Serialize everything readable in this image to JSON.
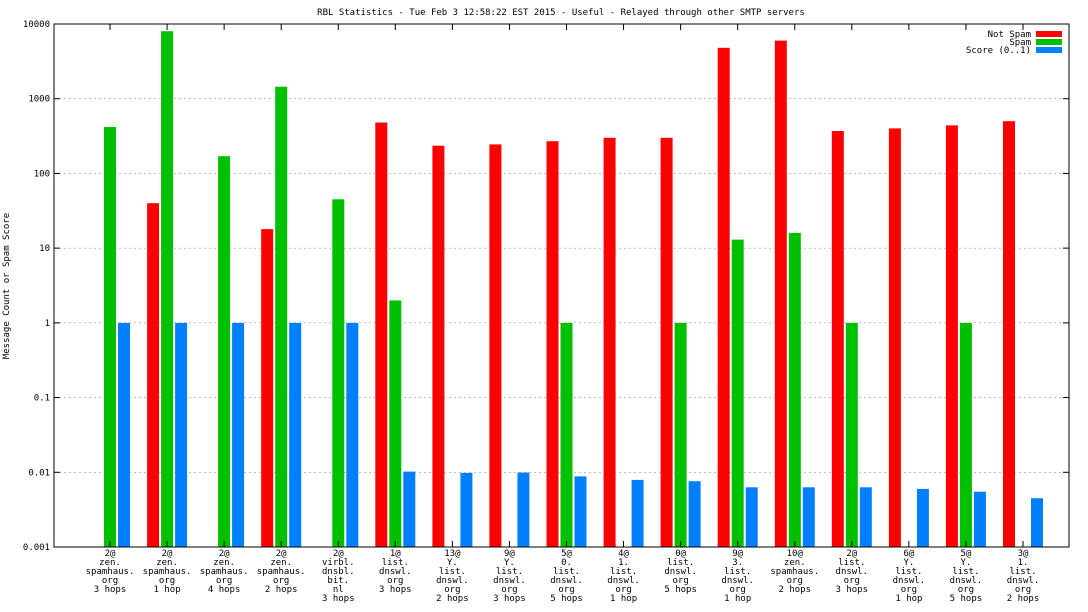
{
  "chart_data": {
    "type": "bar",
    "title": "RBL Statistics - Tue Feb  3 12:58:22 EST 2015 - Useful - Relayed through other SMTP servers",
    "xlabel": "",
    "ylabel": "Message Count or Spam Score",
    "yscale": "log",
    "ylim": [
      0.001,
      10000
    ],
    "yticks": [
      {
        "value": 0.001,
        "label": "0.001"
      },
      {
        "value": 0.01,
        "label": "0.01"
      },
      {
        "value": 0.1,
        "label": "0.1"
      },
      {
        "value": 1,
        "label": "1"
      },
      {
        "value": 10,
        "label": "10"
      },
      {
        "value": 100,
        "label": "100"
      },
      {
        "value": 1000,
        "label": "1000"
      },
      {
        "value": 10000,
        "label": "10000"
      }
    ],
    "grid": true,
    "legend_position": "top-right",
    "categories": [
      [
        "2@",
        "zen.",
        "spamhaus.",
        "org",
        "3 hops"
      ],
      [
        "2@",
        "zen.",
        "spamhaus.",
        "org",
        "1 hop"
      ],
      [
        "2@",
        "zen.",
        "spamhaus.",
        "org",
        "4 hops"
      ],
      [
        "2@",
        "zen.",
        "spamhaus.",
        "org",
        "2 hops"
      ],
      [
        "2@",
        "virbl.",
        "dnsbl.",
        "bit.",
        "nl",
        "3 hops"
      ],
      [
        "1@",
        "list.",
        "dnswl.",
        "org",
        "3 hops"
      ],
      [
        "13@",
        "Y.",
        "list.",
        "dnswl.",
        "org",
        "2 hops"
      ],
      [
        "9@",
        "Y.",
        "list.",
        "dnswl.",
        "org",
        "3 hops"
      ],
      [
        "5@",
        "0.",
        "list.",
        "dnswl.",
        "org",
        "5 hops"
      ],
      [
        "4@",
        "1.",
        "list.",
        "dnswl.",
        "org",
        "1 hop"
      ],
      [
        "0@",
        "list.",
        "dnswl.",
        "org",
        "5 hops"
      ],
      [
        "9@",
        "3.",
        "list.",
        "dnswl.",
        "org",
        "1 hop"
      ],
      [
        "10@",
        "zen.",
        "spamhaus.",
        "org",
        "2 hops"
      ],
      [
        "2@",
        "list.",
        "dnswl.",
        "org",
        "3 hops"
      ],
      [
        "6@",
        "Y.",
        "list.",
        "dnswl.",
        "org",
        "1 hop"
      ],
      [
        "5@",
        "Y.",
        "list.",
        "dnswl.",
        "org",
        "5 hops"
      ],
      [
        "3@",
        "1.",
        "list.",
        "dnswl.",
        "org",
        "2 hops"
      ]
    ],
    "series": [
      {
        "name": "Not Spam",
        "color": "#ff0000",
        "values": [
          null,
          40,
          null,
          18,
          null,
          480,
          235,
          245,
          270,
          300,
          300,
          4800,
          6000,
          370,
          400,
          440,
          500
        ]
      },
      {
        "name": "Spam",
        "color": "#00c000",
        "values": [
          420,
          8000,
          170,
          1450,
          45,
          2,
          null,
          null,
          1,
          null,
          1,
          13,
          16,
          1,
          null,
          1,
          null
        ]
      },
      {
        "name": "Score (0..1)",
        "color": "#0080ff",
        "values": [
          1,
          1,
          1,
          1,
          1,
          0.0102,
          0.0098,
          0.0099,
          0.0088,
          0.0079,
          0.0076,
          0.0063,
          0.0063,
          0.0063,
          0.006,
          0.0055,
          0.0045
        ]
      }
    ]
  }
}
